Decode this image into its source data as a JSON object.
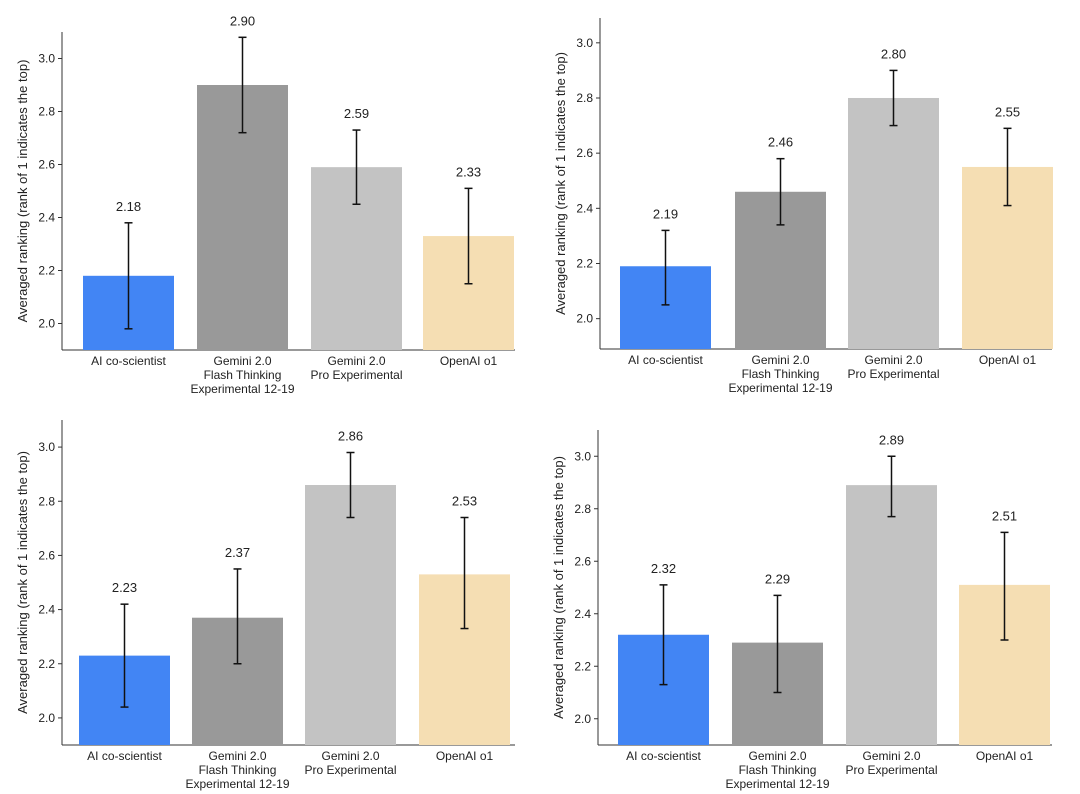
{
  "chart_data": [
    {
      "type": "bar",
      "categories": [
        [
          "AI co-scientist"
        ],
        [
          "Gemini 2.0",
          "Flash Thinking",
          "Experimental 12-19"
        ],
        [
          "Gemini 2.0",
          "Pro Experimental"
        ],
        [
          "OpenAI o1"
        ]
      ],
      "values": [
        2.18,
        2.9,
        2.59,
        2.33
      ],
      "value_labels": [
        "2.18",
        "2.90",
        "2.59",
        "2.33"
      ],
      "errors": [
        [
          1.98,
          2.38
        ],
        [
          2.72,
          3.08
        ],
        [
          2.45,
          2.73
        ],
        [
          2.15,
          2.51
        ]
      ],
      "colors": [
        "#4285f4",
        "#999999",
        "#c3c3c3",
        "#f5deb3"
      ],
      "ylabel": "Averaged ranking (rank of 1 indicates the top)",
      "ylim": [
        1.9,
        3.1
      ],
      "yticks": [
        "2.0",
        "2.2",
        "2.4",
        "2.6",
        "2.8",
        "3.0"
      ],
      "grid": false
    },
    {
      "type": "bar",
      "categories": [
        [
          "AI co-scientist"
        ],
        [
          "Gemini 2.0",
          "Flash Thinking",
          "Experimental 12-19"
        ],
        [
          "Gemini 2.0",
          "Pro Experimental"
        ],
        [
          "OpenAI o1"
        ]
      ],
      "values": [
        2.19,
        2.46,
        2.8,
        2.55
      ],
      "value_labels": [
        "2.19",
        "2.46",
        "2.80",
        "2.55"
      ],
      "errors": [
        [
          2.05,
          2.32
        ],
        [
          2.34,
          2.58
        ],
        [
          2.7,
          2.9
        ],
        [
          2.41,
          2.69
        ]
      ],
      "colors": [
        "#4285f4",
        "#999999",
        "#c3c3c3",
        "#f5deb3"
      ],
      "ylabel": "Averaged ranking (rank of 1 indicates the top)",
      "ylim": [
        1.89,
        3.09
      ],
      "yticks": [
        "2.0",
        "2.2",
        "2.4",
        "2.6",
        "2.8",
        "3.0"
      ],
      "grid": false
    },
    {
      "type": "bar",
      "categories": [
        [
          "AI co-scientist"
        ],
        [
          "Gemini 2.0",
          "Flash Thinking",
          "Experimental 12-19"
        ],
        [
          "Gemini 2.0",
          "Pro Experimental"
        ],
        [
          "OpenAI o1"
        ]
      ],
      "values": [
        2.23,
        2.37,
        2.86,
        2.53
      ],
      "value_labels": [
        "2.23",
        "2.37",
        "2.86",
        "2.53"
      ],
      "errors": [
        [
          2.04,
          2.42
        ],
        [
          2.2,
          2.55
        ],
        [
          2.74,
          2.98
        ],
        [
          2.33,
          2.74
        ]
      ],
      "colors": [
        "#4285f4",
        "#999999",
        "#c3c3c3",
        "#f5deb3"
      ],
      "ylabel": "Averaged ranking (rank of 1 indicates the top)",
      "ylim": [
        1.9,
        3.1
      ],
      "yticks": [
        "2.0",
        "2.2",
        "2.4",
        "2.6",
        "2.8",
        "3.0"
      ],
      "grid": false
    },
    {
      "type": "bar",
      "categories": [
        [
          "AI co-scientist"
        ],
        [
          "Gemini 2.0",
          "Flash Thinking",
          "Experimental 12-19"
        ],
        [
          "Gemini 2.0",
          "Pro Experimental"
        ],
        [
          "OpenAI o1"
        ]
      ],
      "values": [
        2.32,
        2.29,
        2.89,
        2.51
      ],
      "value_labels": [
        "2.32",
        "2.29",
        "2.89",
        "2.51"
      ],
      "errors": [
        [
          2.13,
          2.51
        ],
        [
          2.1,
          2.47
        ],
        [
          2.77,
          3.0
        ],
        [
          2.3,
          2.71
        ]
      ],
      "colors": [
        "#4285f4",
        "#999999",
        "#c3c3c3",
        "#f5deb3"
      ],
      "ylabel": "Averaged ranking (rank of 1 indicates the top)",
      "ylim": [
        1.9,
        3.1
      ],
      "yticks": [
        "2.0",
        "2.2",
        "2.4",
        "2.6",
        "2.8",
        "3.0"
      ],
      "grid": false
    }
  ]
}
